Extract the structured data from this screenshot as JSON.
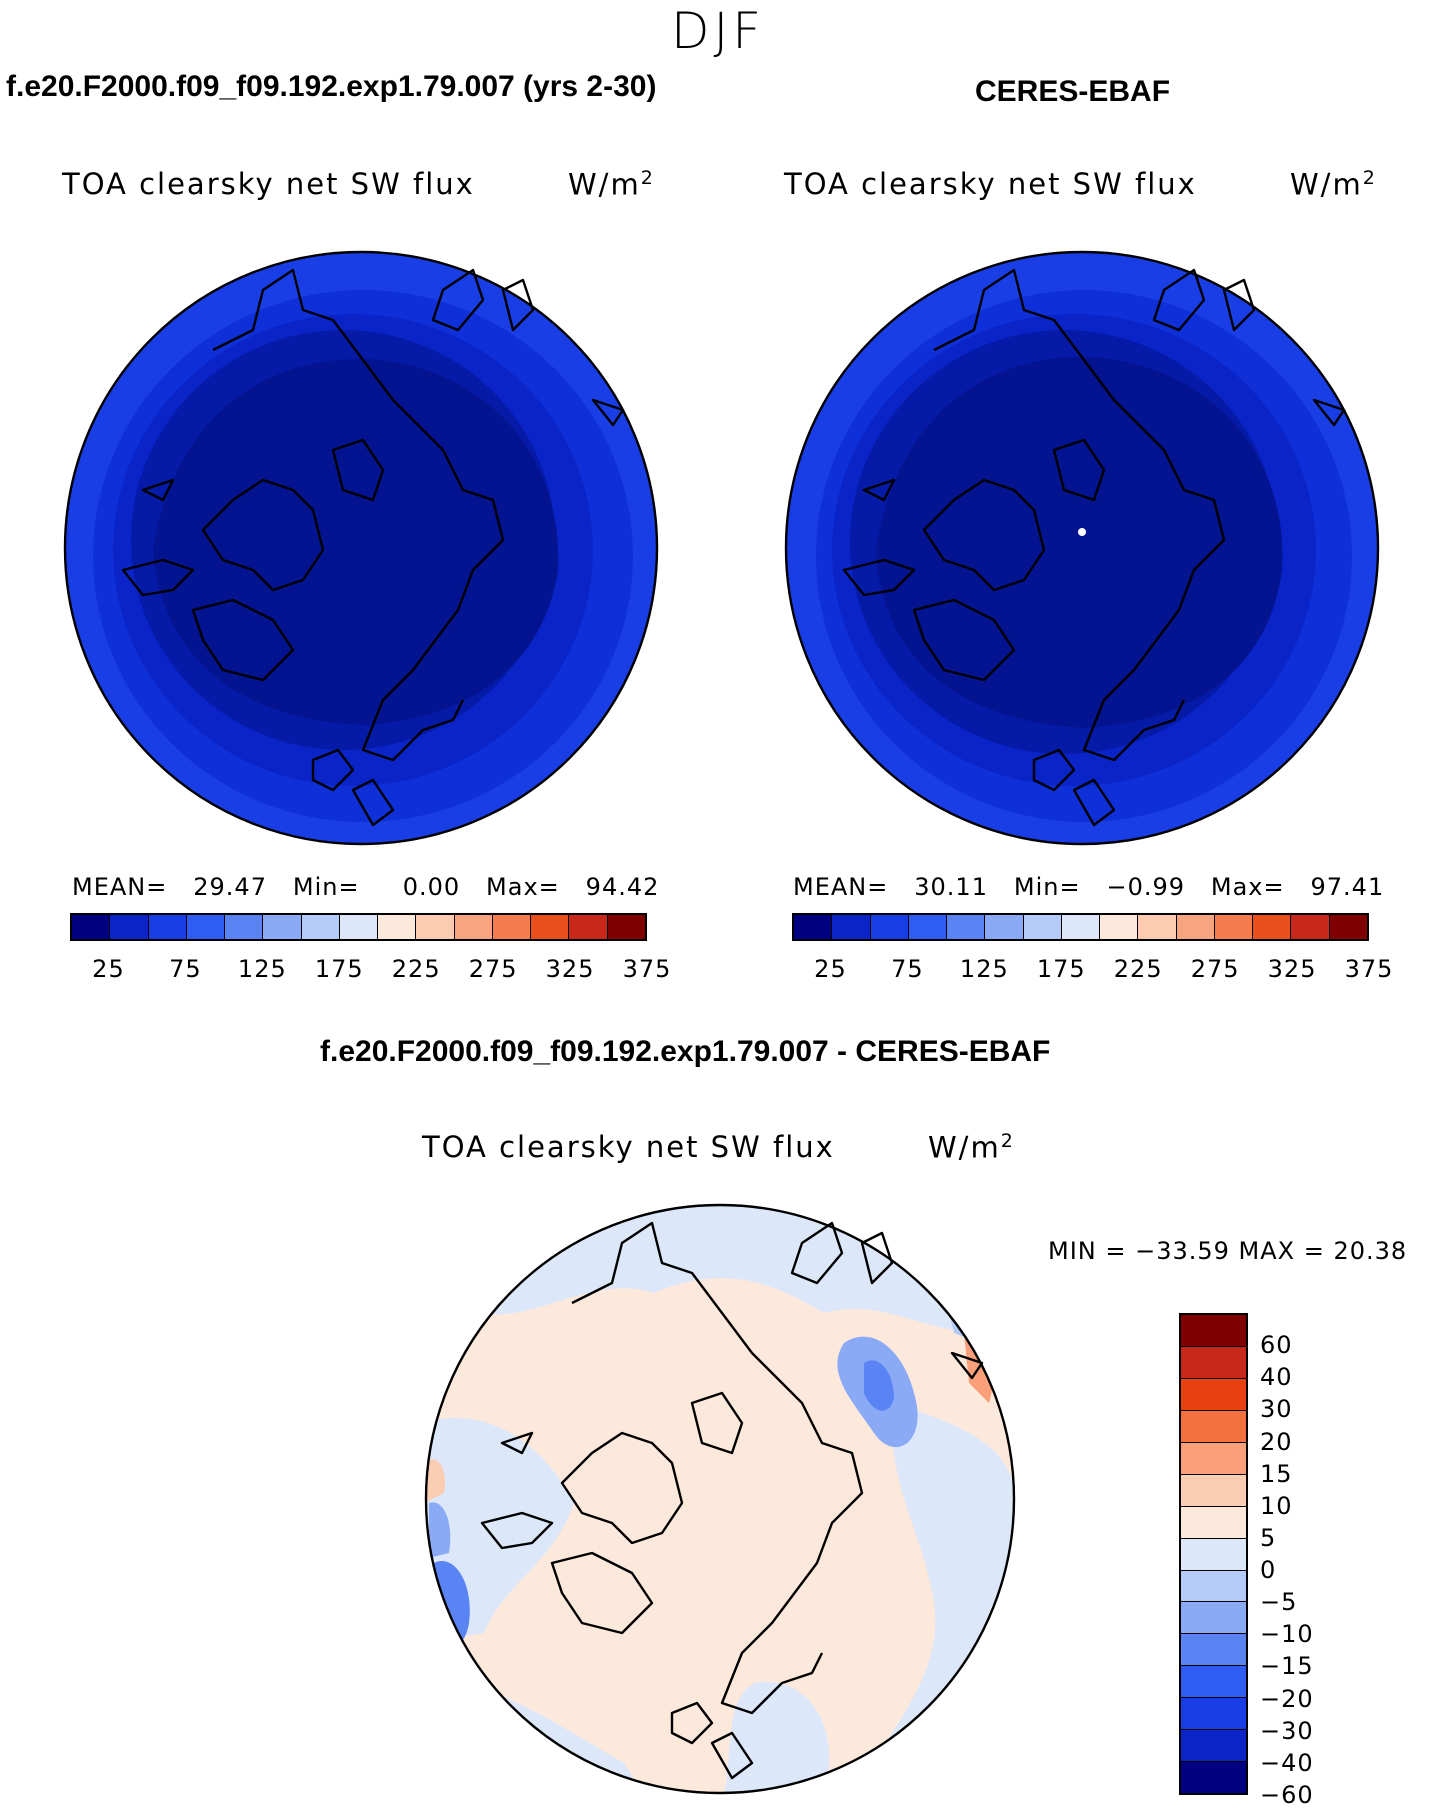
{
  "suptitle": "DJF",
  "left_panel": {
    "header": "f.e20.F2000.f09_f09.192.exp1.79.007 (yrs 2-30)",
    "title": "TOA clearsky net SW flux",
    "units": "W/m",
    "units_sup": "2",
    "mean_label": "MEAN=",
    "mean": "29.47",
    "min_label": "Min=",
    "min": "0.00",
    "max_label": "Max=",
    "max": "94.42"
  },
  "right_panel": {
    "header": "CERES-EBAF",
    "title": "TOA clearsky net SW flux",
    "units": "W/m",
    "units_sup": "2",
    "mean_label": "MEAN=",
    "mean": "30.11",
    "min_label": "Min=",
    "min": "−0.99",
    "max_label": "Max=",
    "max": "97.41"
  },
  "diff_panel": {
    "header": "f.e20.F2000.f09_f09.192.exp1.79.007 - CERES-EBAF",
    "title": "TOA clearsky net SW flux",
    "units": "W/m",
    "units_sup": "2",
    "minmax": "MIN = −33.59 MAX =   20.38"
  },
  "abs_colorbar": {
    "colors": [
      "#000080",
      "#0a24c8",
      "#1a3ee6",
      "#2f5cf2",
      "#5a84f4",
      "#8aaaf6",
      "#b4caf8",
      "#dce8fa",
      "#fde9dc",
      "#fccbb0",
      "#f9a480",
      "#f47c4e",
      "#ea4f1e",
      "#c8281a",
      "#7e0000"
    ],
    "ticks": [
      "25",
      "75",
      "125",
      "175",
      "225",
      "275",
      "325",
      "375"
    ]
  },
  "diff_colorbar": {
    "colors": [
      "#7e0000",
      "#c8281a",
      "#e8400e",
      "#f4703e",
      "#f9a07a",
      "#fbcdb2",
      "#fde9dc",
      "#dce8fa",
      "#b4caf8",
      "#8aaaf6",
      "#5a84f4",
      "#2f5cf2",
      "#1a3ee6",
      "#0a24c8",
      "#000080"
    ],
    "labels": [
      "60",
      "40",
      "30",
      "20",
      "15",
      "10",
      "5",
      "0",
      "−5",
      "−10",
      "−15",
      "−20",
      "−30",
      "−40",
      "−60"
    ]
  }
}
